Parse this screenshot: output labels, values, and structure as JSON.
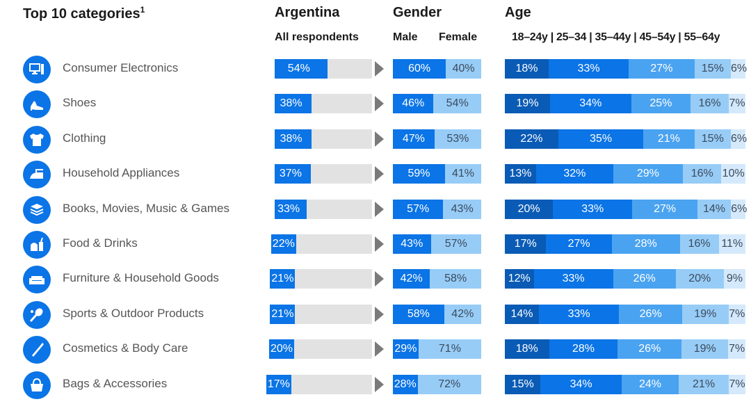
{
  "headers": {
    "categories": "Top 10 categories",
    "categories_sup": "1",
    "argentina": "Argentina",
    "argentina_sub": "All respondents",
    "gender": "Gender",
    "male": "Male",
    "female": "Female",
    "age": "Age",
    "age_sub": "18–24y | 25–34 | 35–44y | 45–54y | 55–64y"
  },
  "colors": {
    "accent": "#0b74e6",
    "age": [
      "#0a5bb5",
      "#0b74e6",
      "#4aa3f0",
      "#97ccf7",
      "#d4e9fb"
    ],
    "gender": [
      "#0b74e6",
      "#97ccf7"
    ],
    "track": "#e2e2e2"
  },
  "chart_data": {
    "type": "bar",
    "categories": [
      "Consumer Electronics",
      "Shoes",
      "Clothing",
      "Household Appliances",
      "Books, Movies, Music & Games",
      "Food & Drinks",
      "Furniture & Household Goods",
      "Sports & Outdoor Products",
      "Cosmetics & Body Care",
      "Bags & Accessories"
    ],
    "icons": [
      "computer-icon",
      "high-heel-icon",
      "tshirt-icon",
      "iron-icon",
      "books-icon",
      "food-drink-icon",
      "sofa-icon",
      "sports-icon",
      "cosmetics-icon",
      "handbag-icon"
    ],
    "all_respondents": [
      54,
      38,
      38,
      37,
      33,
      22,
      21,
      21,
      20,
      17
    ],
    "gender_series": [
      {
        "name": "Male",
        "values": [
          60,
          46,
          47,
          59,
          57,
          43,
          42,
          58,
          29,
          28
        ]
      },
      {
        "name": "Female",
        "values": [
          40,
          54,
          53,
          41,
          43,
          57,
          58,
          42,
          71,
          72
        ]
      }
    ],
    "age_series": [
      {
        "name": "18–24y",
        "values": [
          18,
          19,
          22,
          13,
          20,
          17,
          12,
          14,
          18,
          15
        ]
      },
      {
        "name": "25–34",
        "values": [
          33,
          34,
          35,
          32,
          33,
          27,
          33,
          33,
          28,
          34
        ]
      },
      {
        "name": "35–44y",
        "values": [
          27,
          25,
          21,
          29,
          27,
          28,
          26,
          26,
          26,
          24
        ]
      },
      {
        "name": "45–54y",
        "values": [
          15,
          16,
          15,
          16,
          14,
          16,
          20,
          19,
          19,
          21
        ]
      },
      {
        "name": "55–64y",
        "values": [
          6,
          7,
          6,
          10,
          6,
          11,
          9,
          7,
          7,
          7
        ]
      }
    ],
    "unit": "%",
    "ylim": [
      0,
      100
    ]
  }
}
